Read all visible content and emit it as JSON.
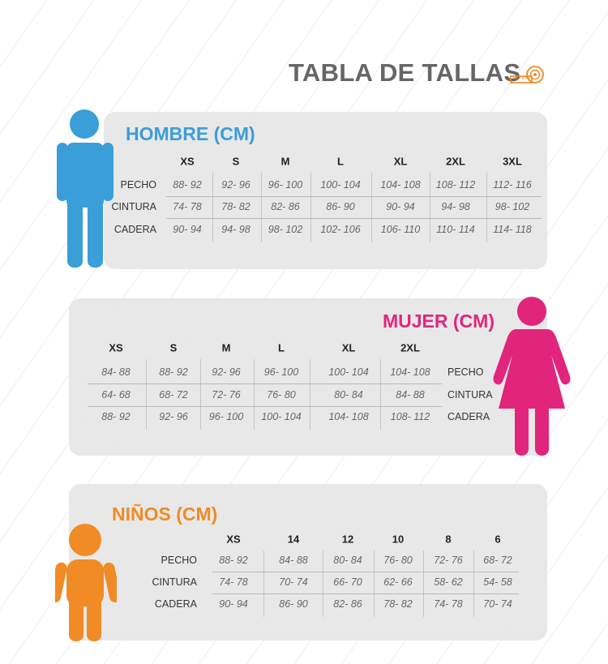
{
  "title": "TABLA DE TALLAS",
  "colors": {
    "hombre": "#3a9ed8",
    "mujer": "#e2257c",
    "ninos": "#f08b25",
    "title": "#666666",
    "panel": "#e6e6e6"
  },
  "icons": {
    "title": "tape-measure-icon",
    "hombre": "man-figure-icon",
    "mujer": "woman-figure-icon",
    "ninos": "child-figure-icon"
  },
  "sections": [
    {
      "key": "hombre",
      "title": "HOMBRE (CM)",
      "sizes": [
        "XS",
        "S",
        "M",
        "L",
        "XL",
        "2XL",
        "3XL"
      ],
      "rows": [
        {
          "label": "PECHO",
          "values": [
            "88- 92",
            "92- 96",
            "96- 100",
            "100- 104",
            "104- 108",
            "108- 112",
            "112- 116"
          ]
        },
        {
          "label": "CINTURA",
          "values": [
            "74- 78",
            "78- 82",
            "82- 86",
            "86- 90",
            "90- 94",
            "94- 98",
            "98- 102"
          ]
        },
        {
          "label": "CADERA",
          "values": [
            "90- 94",
            "94- 98",
            "98- 102",
            "102- 106",
            "106- 110",
            "110- 114",
            "114- 118"
          ]
        }
      ]
    },
    {
      "key": "mujer",
      "title": "MUJER (CM)",
      "sizes": [
        "XS",
        "S",
        "M",
        "L",
        "XL",
        "2XL"
      ],
      "rows": [
        {
          "label": "PECHO",
          "values": [
            "84- 88",
            "88- 92",
            "92- 96",
            "96- 100",
            "100- 104",
            "104- 108"
          ]
        },
        {
          "label": "CINTURA",
          "values": [
            "64- 68",
            "68- 72",
            "72- 76",
            "76- 80",
            "80- 84",
            "84- 88"
          ]
        },
        {
          "label": "CADERA",
          "values": [
            "88- 92",
            "92- 96",
            "96- 100",
            "100- 104",
            "104- 108",
            "108- 112"
          ]
        }
      ]
    },
    {
      "key": "ninos",
      "title": "NIÑOS (CM)",
      "sizes": [
        "XS",
        "14",
        "12",
        "10",
        "8",
        "6"
      ],
      "rows": [
        {
          "label": "PECHO",
          "values": [
            "88- 92",
            "84- 88",
            "80- 84",
            "76- 80",
            "72- 76",
            "68- 72"
          ]
        },
        {
          "label": "CINTURA",
          "values": [
            "74- 78",
            "70- 74",
            "66- 70",
            "62- 66",
            "58- 62",
            "54- 58"
          ]
        },
        {
          "label": "CADERA",
          "values": [
            "90- 94",
            "86- 90",
            "82- 86",
            "78- 82",
            "74- 78",
            "70- 74"
          ]
        }
      ]
    }
  ]
}
